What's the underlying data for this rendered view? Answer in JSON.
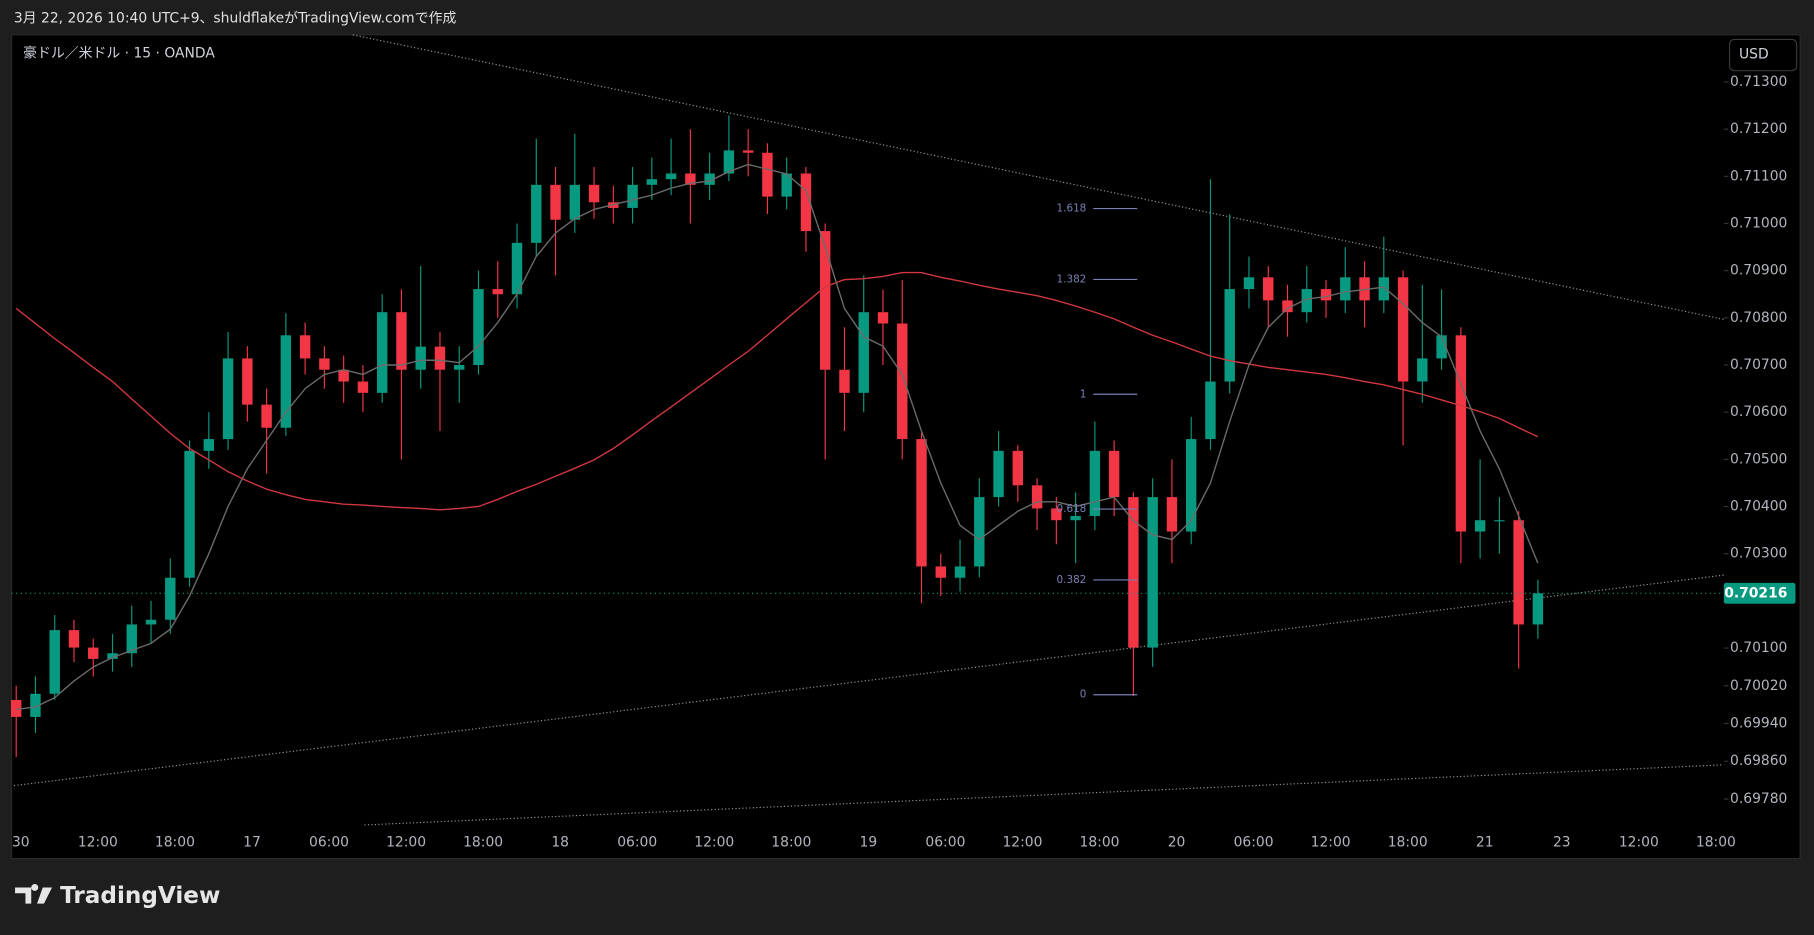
{
  "header": {
    "caption": "3月 22, 2026 10:40 UTC+9、shuldflakeがTradingView.comで作成"
  },
  "footer": {
    "logo": "TradingView"
  },
  "chart_data": {
    "type": "candlestick",
    "symbol": "豪ドル／米ドル · 15 · OANDA",
    "currency": "USD",
    "colors": {
      "up": "#089981",
      "down": "#f23645"
    },
    "ylim": [
      0.6972,
      0.714
    ],
    "yticks": [
      {
        "value": 0.713,
        "label": "0.71300"
      },
      {
        "value": 0.712,
        "label": "0.71200"
      },
      {
        "value": 0.711,
        "label": "0.71100"
      },
      {
        "value": 0.71,
        "label": "0.71000"
      },
      {
        "value": 0.709,
        "label": "0.70900"
      },
      {
        "value": 0.708,
        "label": "0.70800"
      },
      {
        "value": 0.707,
        "label": "0.70700"
      },
      {
        "value": 0.706,
        "label": "0.70600"
      },
      {
        "value": 0.705,
        "label": "0.70500"
      },
      {
        "value": 0.704,
        "label": "0.70400"
      },
      {
        "value": 0.703,
        "label": "0.70300"
      },
      {
        "value": 0.701,
        "label": "0.70100"
      },
      {
        "value": 0.7002,
        "label": "0.70020"
      },
      {
        "value": 0.6994,
        "label": "0.69940"
      },
      {
        "value": 0.6986,
        "label": "0.69860"
      },
      {
        "value": 0.6978,
        "label": "0.69780"
      }
    ],
    "x_labels": [
      "30",
      "12:00",
      "18:00",
      "17",
      "06:00",
      "12:00",
      "18:00",
      "18",
      "06:00",
      "12:00",
      "18:00",
      "19",
      "06:00",
      "12:00",
      "18:00",
      "20",
      "06:00",
      "12:00",
      "18:00",
      "21",
      "23",
      "12:00",
      "18:00"
    ],
    "last_price": 0.70216,
    "ohlc": [
      [
        0.6999,
        0.7002,
        0.69869,
        0.69954
      ],
      [
        0.69954,
        0.7004,
        0.6992,
        0.70003
      ],
      [
        0.70003,
        0.7017,
        0.6999,
        0.70138
      ],
      [
        0.70138,
        0.7016,
        0.7007,
        0.70101
      ],
      [
        0.70101,
        0.7012,
        0.7004,
        0.70077
      ],
      [
        0.70077,
        0.7013,
        0.7005,
        0.70089
      ],
      [
        0.70089,
        0.7019,
        0.7006,
        0.7015
      ],
      [
        0.7015,
        0.702,
        0.7011,
        0.7016
      ],
      [
        0.7016,
        0.7029,
        0.7013,
        0.70249
      ],
      [
        0.70249,
        0.7054,
        0.7023,
        0.70518
      ],
      [
        0.70518,
        0.706,
        0.7048,
        0.70543
      ],
      [
        0.70543,
        0.7077,
        0.7052,
        0.70714
      ],
      [
        0.70714,
        0.7074,
        0.7058,
        0.70616
      ],
      [
        0.70616,
        0.7065,
        0.7047,
        0.70567
      ],
      [
        0.70567,
        0.7081,
        0.7055,
        0.70763
      ],
      [
        0.70763,
        0.7079,
        0.7068,
        0.70714
      ],
      [
        0.70714,
        0.7074,
        0.7065,
        0.7069
      ],
      [
        0.7069,
        0.7072,
        0.7062,
        0.70665
      ],
      [
        0.70665,
        0.707,
        0.706,
        0.70641
      ],
      [
        0.70641,
        0.7085,
        0.7062,
        0.70812
      ],
      [
        0.70812,
        0.7086,
        0.705,
        0.7069
      ],
      [
        0.7069,
        0.7091,
        0.7065,
        0.70739
      ],
      [
        0.70739,
        0.7077,
        0.7056,
        0.7069
      ],
      [
        0.7069,
        0.7074,
        0.7062,
        0.707
      ],
      [
        0.707,
        0.709,
        0.7068,
        0.70861
      ],
      [
        0.70861,
        0.7092,
        0.708,
        0.7085
      ],
      [
        0.7085,
        0.71,
        0.7082,
        0.70959
      ],
      [
        0.70959,
        0.7118,
        0.7093,
        0.71082
      ],
      [
        0.71082,
        0.7112,
        0.7089,
        0.71008
      ],
      [
        0.71008,
        0.7119,
        0.7098,
        0.71082
      ],
      [
        0.71082,
        0.7112,
        0.7101,
        0.71045
      ],
      [
        0.71045,
        0.7108,
        0.71,
        0.71033
      ],
      [
        0.71033,
        0.7112,
        0.71,
        0.71082
      ],
      [
        0.71082,
        0.7114,
        0.7105,
        0.71094
      ],
      [
        0.71094,
        0.7118,
        0.7106,
        0.71106
      ],
      [
        0.71106,
        0.712,
        0.71,
        0.71082
      ],
      [
        0.71082,
        0.7115,
        0.7105,
        0.71106
      ],
      [
        0.71106,
        0.71229,
        0.7109,
        0.71155
      ],
      [
        0.71155,
        0.712,
        0.711,
        0.7115
      ],
      [
        0.7115,
        0.7117,
        0.7102,
        0.71057
      ],
      [
        0.71057,
        0.7114,
        0.7103,
        0.71106
      ],
      [
        0.71106,
        0.7112,
        0.7094,
        0.70984
      ],
      [
        0.70984,
        0.71,
        0.705,
        0.7069
      ],
      [
        0.7069,
        0.7078,
        0.7056,
        0.70641
      ],
      [
        0.70641,
        0.7089,
        0.706,
        0.70812
      ],
      [
        0.70812,
        0.7086,
        0.707,
        0.70788
      ],
      [
        0.70788,
        0.7088,
        0.705,
        0.70543
      ],
      [
        0.70543,
        0.7056,
        0.70195,
        0.70273
      ],
      [
        0.70273,
        0.703,
        0.7021,
        0.70249
      ],
      [
        0.70249,
        0.7033,
        0.7022,
        0.70273
      ],
      [
        0.70273,
        0.7046,
        0.7025,
        0.7042
      ],
      [
        0.7042,
        0.7056,
        0.704,
        0.70518
      ],
      [
        0.70518,
        0.7053,
        0.7041,
        0.70445
      ],
      [
        0.70445,
        0.7046,
        0.7035,
        0.70396
      ],
      [
        0.70396,
        0.7042,
        0.7032,
        0.70371
      ],
      [
        0.70371,
        0.7043,
        0.7028,
        0.7038
      ],
      [
        0.7038,
        0.7058,
        0.7035,
        0.70518
      ],
      [
        0.70518,
        0.7054,
        0.7038,
        0.7042
      ],
      [
        0.7042,
        0.7043,
        0.69998,
        0.70101
      ],
      [
        0.70101,
        0.7046,
        0.7006,
        0.7042
      ],
      [
        0.7042,
        0.705,
        0.7028,
        0.70347
      ],
      [
        0.70347,
        0.7059,
        0.7032,
        0.70543
      ],
      [
        0.70543,
        0.71094,
        0.7052,
        0.70665
      ],
      [
        0.70665,
        0.7102,
        0.7064,
        0.70861
      ],
      [
        0.70861,
        0.7093,
        0.7082,
        0.70886
      ],
      [
        0.70886,
        0.7091,
        0.7078,
        0.70837
      ],
      [
        0.70837,
        0.7087,
        0.7076,
        0.70812
      ],
      [
        0.70812,
        0.7091,
        0.7079,
        0.70861
      ],
      [
        0.70861,
        0.7088,
        0.708,
        0.70837
      ],
      [
        0.70837,
        0.7095,
        0.7081,
        0.70886
      ],
      [
        0.70886,
        0.7092,
        0.7078,
        0.70837
      ],
      [
        0.70837,
        0.70972,
        0.7081,
        0.70886
      ],
      [
        0.70886,
        0.709,
        0.7053,
        0.70665
      ],
      [
        0.70665,
        0.7087,
        0.7062,
        0.70714
      ],
      [
        0.70714,
        0.7086,
        0.7069,
        0.70763
      ],
      [
        0.70763,
        0.7078,
        0.7028,
        0.70347
      ],
      [
        0.70347,
        0.705,
        0.7029,
        0.70371
      ],
      [
        0.70371,
        0.7042,
        0.703,
        0.70371
      ],
      [
        0.70371,
        0.7039,
        0.70057,
        0.7015
      ],
      [
        0.7015,
        0.70245,
        0.7012,
        0.70216
      ]
    ],
    "moving_averages": [
      {
        "color": "#d1373f",
        "values": [
          0.7082,
          0.70788,
          0.70756,
          0.70726,
          0.70695,
          0.70665,
          0.70628,
          0.70592,
          0.70555,
          0.70523,
          0.70499,
          0.70474,
          0.70454,
          0.70437,
          0.70425,
          0.70415,
          0.7041,
          0.70405,
          0.70403,
          0.704,
          0.70398,
          0.70396,
          0.70393,
          0.70396,
          0.704,
          0.70415,
          0.70432,
          0.70447,
          0.70464,
          0.70481,
          0.70499,
          0.70523,
          0.70552,
          0.70582,
          0.70611,
          0.70641,
          0.7067,
          0.707,
          0.70729,
          0.70763,
          0.70798,
          0.70832,
          0.70866,
          0.70881,
          0.70883,
          0.70888,
          0.70896,
          0.70896,
          0.70886,
          0.70878,
          0.70869,
          0.70861,
          0.70854,
          0.70847,
          0.70837,
          0.70825,
          0.70812,
          0.70798,
          0.7078,
          0.70763,
          0.70749,
          0.70734,
          0.70719,
          0.70709,
          0.70702,
          0.70695,
          0.7069,
          0.70685,
          0.7068,
          0.70673,
          0.70665,
          0.70658,
          0.70648,
          0.70638,
          0.70626,
          0.70614,
          0.70601,
          0.70587,
          0.70567,
          0.70548
        ]
      },
      {
        "color": "#6b6b6b",
        "values": [
          0.6997,
          0.69975,
          0.69995,
          0.7003,
          0.7006,
          0.7008,
          0.70095,
          0.7011,
          0.7014,
          0.7021,
          0.703,
          0.704,
          0.7048,
          0.7054,
          0.706,
          0.7065,
          0.7068,
          0.7069,
          0.7068,
          0.707,
          0.707,
          0.7071,
          0.7071,
          0.70705,
          0.7074,
          0.7079,
          0.7085,
          0.7093,
          0.7098,
          0.7101,
          0.7103,
          0.7104,
          0.7105,
          0.7106,
          0.71075,
          0.71085,
          0.7109,
          0.7111,
          0.71125,
          0.71115,
          0.71105,
          0.7107,
          0.7095,
          0.7082,
          0.7076,
          0.7074,
          0.7068,
          0.7056,
          0.7045,
          0.7036,
          0.7033,
          0.7036,
          0.7039,
          0.7041,
          0.7041,
          0.704,
          0.7041,
          0.7042,
          0.7037,
          0.7034,
          0.7033,
          0.7037,
          0.7045,
          0.7058,
          0.707,
          0.7078,
          0.7082,
          0.7084,
          0.70845,
          0.70855,
          0.7086,
          0.70865,
          0.7083,
          0.7079,
          0.7076,
          0.7066,
          0.7056,
          0.7048,
          0.7038,
          0.7028
        ]
      }
    ],
    "fib": {
      "color": "#7b7fb5",
      "low": 0.70001,
      "high": 0.70638,
      "levels": [
        1.618,
        1.382,
        1,
        0.618,
        0.382,
        0
      ]
    }
  }
}
